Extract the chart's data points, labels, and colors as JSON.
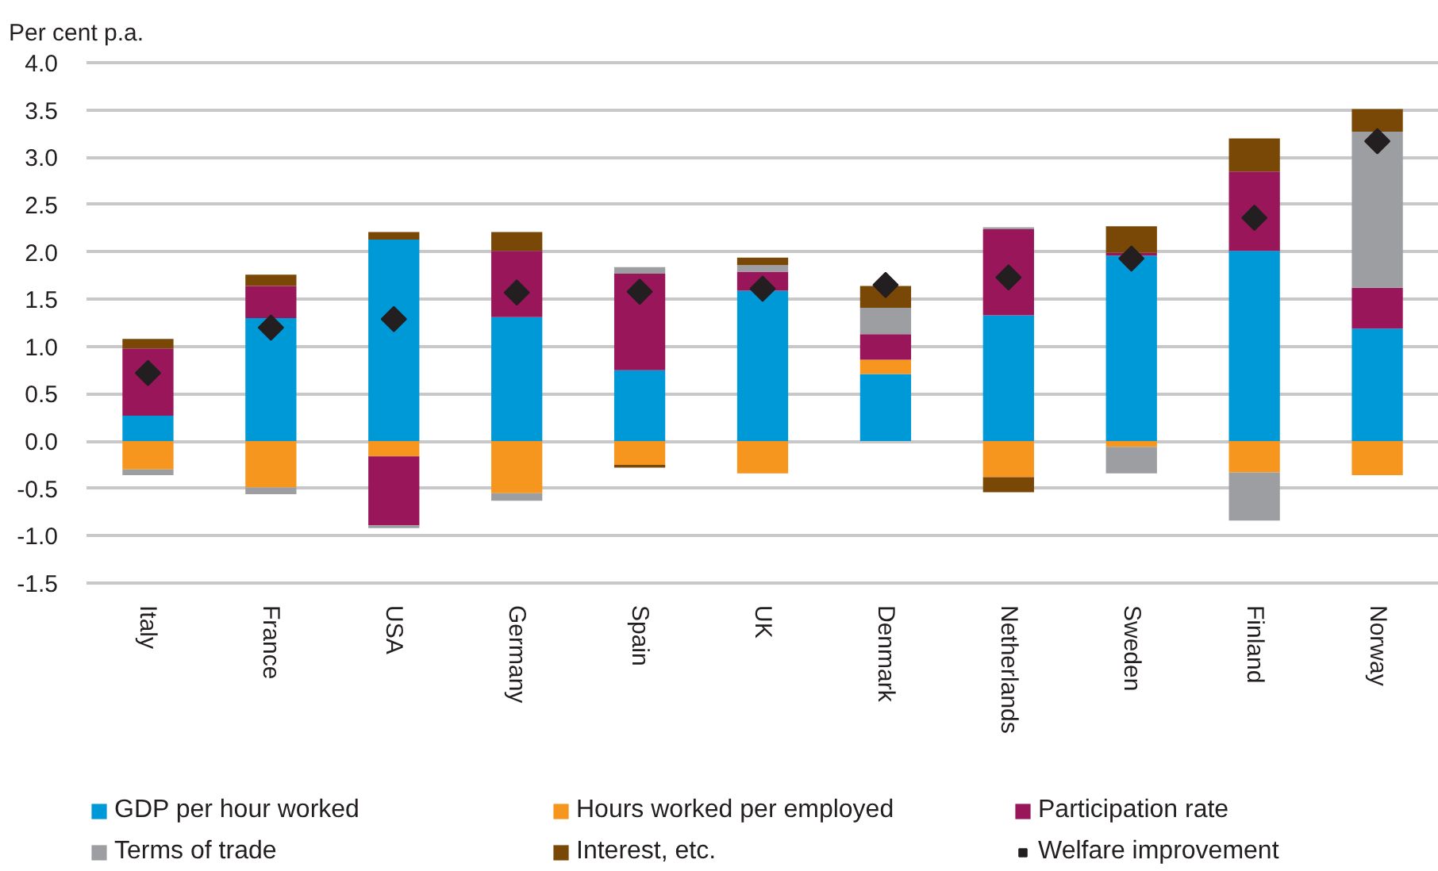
{
  "chart_data": {
    "type": "bar",
    "ylabel": "Per cent p.a.",
    "categories": [
      "Italy",
      "France",
      "USA",
      "Germany",
      "Spain",
      "UK",
      "Denmark",
      "Netherlands",
      "Sweden",
      "Finland",
      "Norway"
    ],
    "stacked": true,
    "series": [
      {
        "name": "GDP per hour worked",
        "color": "#0099d8",
        "values": [
          0.27,
          1.3,
          2.13,
          1.31,
          0.75,
          1.59,
          0.71,
          1.33,
          1.96,
          2.01,
          1.19
        ]
      },
      {
        "name": "Hours worked per employed",
        "color": "#f7961e",
        "values": [
          -0.3,
          -0.49,
          -0.16,
          -0.55,
          -0.25,
          -0.34,
          0.15,
          -0.38,
          -0.06,
          -0.33,
          -0.36
        ]
      },
      {
        "name": "Participation rate",
        "color": "#99165a",
        "values": [
          0.71,
          0.34,
          -0.73,
          0.7,
          1.02,
          0.2,
          0.27,
          0.91,
          0.03,
          0.84,
          0.43
        ]
      },
      {
        "name": "Terms of trade",
        "color": "#9d9ea1",
        "values": [
          -0.06,
          -0.07,
          -0.03,
          -0.08,
          0.07,
          0.07,
          0.28,
          0.02,
          -0.28,
          -0.51,
          1.65
        ]
      },
      {
        "name": "Interest, etc.",
        "color": "#7a4806",
        "values": [
          0.1,
          0.12,
          0.08,
          0.2,
          -0.03,
          0.08,
          0.23,
          -0.16,
          0.28,
          0.35,
          0.24
        ]
      },
      {
        "name": "Welfare improvement",
        "type": "scatter",
        "marker": "diamond",
        "color": "#231f20",
        "x": [
          "Italy",
          "France",
          "USA",
          "Germany",
          "Spain",
          "UK",
          "Denmark",
          "Netherlands",
          "Sweden",
          "Finland",
          "Norway"
        ],
        "values": [
          0.72,
          1.2,
          1.29,
          1.57,
          1.58,
          1.61,
          1.65,
          1.73,
          1.93,
          2.36,
          3.17
        ]
      }
    ],
    "ylim": [
      -1.5,
      4.0
    ],
    "yticks": [
      {
        "value": -1.5,
        "label": "-1.5"
      },
      {
        "value": -1,
        "label": "-1.0"
      },
      {
        "value": -0.5,
        "label": "-0.5"
      },
      {
        "value": 0,
        "label": "0.0"
      },
      {
        "value": 0.5,
        "label": "0.5"
      },
      {
        "value": 1,
        "label": "1.0"
      },
      {
        "value": 1.5,
        "label": "1.5"
      },
      {
        "value": 2,
        "label": "2.0"
      },
      {
        "value": 2.5,
        "label": "2.5"
      },
      {
        "value": 3,
        "label": "3.0"
      },
      {
        "value": 3.5,
        "label": "3.5"
      },
      {
        "value": 4,
        "label": "4.0"
      }
    ],
    "grid": "y",
    "legend": "bottom"
  }
}
